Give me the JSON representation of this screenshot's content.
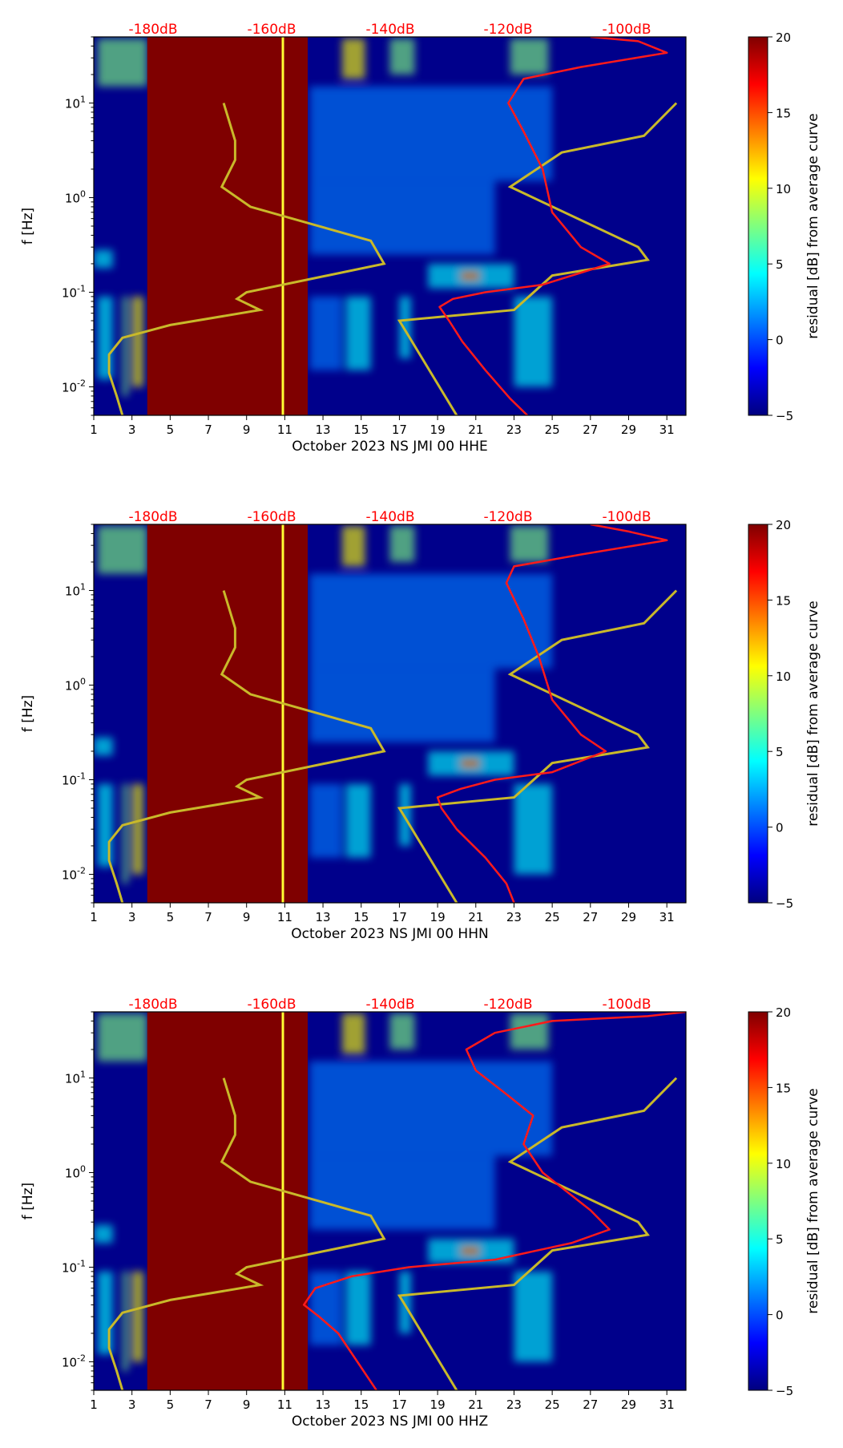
{
  "colors": {
    "jet": [
      "#00007f",
      "#0000ff",
      "#007fff",
      "#00ffff",
      "#7fff7f",
      "#ffff00",
      "#ff7f00",
      "#ff0000",
      "#7f0000"
    ],
    "background": "#00008b",
    "saturated_block": "#7f0000",
    "noise_model": "#c9b92a",
    "percentile_curve": "#ff1a1a",
    "top_label": "#ff0000"
  },
  "chart_data": [
    {
      "type": "heatmap",
      "xlabel": "October 2023 NS JMI 00 HHE",
      "ylabel": "f [Hz]",
      "colorbar_label": "residual [dB] from average curve",
      "xlim": [
        1,
        32
      ],
      "ylim": [
        0.005,
        50
      ],
      "yscale": "log",
      "x_ticks": [
        "1",
        "3",
        "5",
        "7",
        "9",
        "11",
        "13",
        "15",
        "17",
        "19",
        "21",
        "23",
        "25",
        "27",
        "29",
        "31"
      ],
      "y_ticks": [
        "10^-2",
        "10^-1",
        "10^0",
        "10^1"
      ],
      "colorbar_ticks": [
        "20",
        "15",
        "10",
        "5",
        "0",
        "−5"
      ],
      "colorbar_range": [
        -5,
        20
      ],
      "top_db_labels": [
        "-180dB",
        "-160dB",
        "-140dB",
        "-120dB",
        "-100dB"
      ],
      "saturated_span_days": [
        3.8,
        12.2
      ],
      "red_curve": [
        [
          23.7,
          0.005
        ],
        [
          22.8,
          0.0075
        ],
        [
          21.5,
          0.015
        ],
        [
          20.3,
          0.03
        ],
        [
          19.6,
          0.05
        ],
        [
          19.1,
          0.07
        ],
        [
          19.8,
          0.085
        ],
        [
          21.5,
          0.1
        ],
        [
          24.5,
          0.12
        ],
        [
          28.0,
          0.2
        ],
        [
          26.5,
          0.3
        ],
        [
          25.0,
          0.7
        ],
        [
          24.5,
          2.0
        ],
        [
          23.5,
          5.0
        ],
        [
          22.7,
          10.0
        ],
        [
          23.5,
          18.0
        ],
        [
          26.5,
          24.0
        ],
        [
          31.0,
          34.0
        ],
        [
          29.5,
          45.0
        ],
        [
          27.0,
          50.0
        ]
      ],
      "yellow_curve": [
        [
          20.0,
          0.005
        ],
        [
          17.0,
          0.05
        ],
        [
          23.0,
          0.065
        ],
        [
          25.0,
          0.15
        ],
        [
          30.0,
          0.22
        ],
        [
          29.5,
          0.3
        ],
        [
          22.8,
          1.3
        ],
        [
          25.5,
          3.0
        ],
        [
          29.8,
          4.5
        ],
        [
          31.5,
          10.0
        ]
      ],
      "yellow_curve_low": [
        [
          2.5,
          0.005
        ],
        [
          2.2,
          0.008
        ],
        [
          1.8,
          0.014
        ],
        [
          1.8,
          0.022
        ],
        [
          2.5,
          0.033
        ],
        [
          5.0,
          0.045
        ],
        [
          9.7,
          0.065
        ],
        [
          8.5,
          0.085
        ],
        [
          9.0,
          0.1
        ],
        [
          16.2,
          0.2
        ],
        [
          15.5,
          0.35
        ],
        [
          9.2,
          0.8
        ],
        [
          7.7,
          1.3
        ],
        [
          8.4,
          2.5
        ],
        [
          8.4,
          4.0
        ],
        [
          7.8,
          10.0
        ]
      ]
    },
    {
      "type": "heatmap",
      "xlabel": "October 2023 NS JMI 00 HHN",
      "ylabel": "f [Hz]",
      "colorbar_label": "residual [dB] from average curve",
      "xlim": [
        1,
        32
      ],
      "ylim": [
        0.005,
        50
      ],
      "yscale": "log",
      "x_ticks": [
        "1",
        "3",
        "5",
        "7",
        "9",
        "11",
        "13",
        "15",
        "17",
        "19",
        "21",
        "23",
        "25",
        "27",
        "29",
        "31"
      ],
      "y_ticks": [
        "10^-2",
        "10^-1",
        "10^0",
        "10^1"
      ],
      "colorbar_ticks": [
        "20",
        "15",
        "10",
        "5",
        "0",
        "−5"
      ],
      "colorbar_range": [
        -5,
        20
      ],
      "top_db_labels": [
        "-180dB",
        "-160dB",
        "-140dB",
        "-120dB",
        "-100dB"
      ],
      "saturated_span_days": [
        3.8,
        12.2
      ],
      "red_curve": [
        [
          23.0,
          0.005
        ],
        [
          22.6,
          0.008
        ],
        [
          21.5,
          0.015
        ],
        [
          20.0,
          0.03
        ],
        [
          19.2,
          0.05
        ],
        [
          19.0,
          0.065
        ],
        [
          20.2,
          0.08
        ],
        [
          22.0,
          0.1
        ],
        [
          25.0,
          0.12
        ],
        [
          27.8,
          0.2
        ],
        [
          26.5,
          0.3
        ],
        [
          25.0,
          0.7
        ],
        [
          24.3,
          2.0
        ],
        [
          23.5,
          5.0
        ],
        [
          22.6,
          12.0
        ],
        [
          23.0,
          18.0
        ],
        [
          26.5,
          24.0
        ],
        [
          31.0,
          34.0
        ],
        [
          29.0,
          42.0
        ],
        [
          27.0,
          50.0
        ]
      ],
      "yellow_curve": [
        [
          20.0,
          0.005
        ],
        [
          17.0,
          0.05
        ],
        [
          23.0,
          0.065
        ],
        [
          25.0,
          0.15
        ],
        [
          30.0,
          0.22
        ],
        [
          29.5,
          0.3
        ],
        [
          22.8,
          1.3
        ],
        [
          25.5,
          3.0
        ],
        [
          29.8,
          4.5
        ],
        [
          31.5,
          10.0
        ]
      ],
      "yellow_curve_low": [
        [
          2.5,
          0.005
        ],
        [
          2.2,
          0.008
        ],
        [
          1.8,
          0.014
        ],
        [
          1.8,
          0.022
        ],
        [
          2.5,
          0.033
        ],
        [
          5.0,
          0.045
        ],
        [
          9.7,
          0.065
        ],
        [
          8.5,
          0.085
        ],
        [
          9.0,
          0.1
        ],
        [
          16.2,
          0.2
        ],
        [
          15.5,
          0.35
        ],
        [
          9.2,
          0.8
        ],
        [
          7.7,
          1.3
        ],
        [
          8.4,
          2.5
        ],
        [
          8.4,
          4.0
        ],
        [
          7.8,
          10.0
        ]
      ]
    },
    {
      "type": "heatmap",
      "xlabel": "October 2023 NS JMI 00 HHZ",
      "ylabel": "f [Hz]",
      "colorbar_label": "residual [dB] from average curve",
      "xlim": [
        1,
        32
      ],
      "ylim": [
        0.005,
        50
      ],
      "yscale": "log",
      "x_ticks": [
        "1",
        "3",
        "5",
        "7",
        "9",
        "11",
        "13",
        "15",
        "17",
        "19",
        "21",
        "23",
        "25",
        "27",
        "29",
        "31"
      ],
      "y_ticks": [
        "10^-2",
        "10^-1",
        "10^0",
        "10^1"
      ],
      "colorbar_ticks": [
        "20",
        "15",
        "10",
        "5",
        "0",
        "−5"
      ],
      "colorbar_range": [
        -5,
        20
      ],
      "top_db_labels": [
        "-180dB",
        "-160dB",
        "-140dB",
        "-120dB",
        "-100dB"
      ],
      "saturated_span_days": [
        3.8,
        12.2
      ],
      "red_curve": [
        [
          15.8,
          0.005
        ],
        [
          14.8,
          0.01
        ],
        [
          13.8,
          0.02
        ],
        [
          12.8,
          0.03
        ],
        [
          12.0,
          0.04
        ],
        [
          12.6,
          0.06
        ],
        [
          14.5,
          0.08
        ],
        [
          17.5,
          0.1
        ],
        [
          22.0,
          0.12
        ],
        [
          26.0,
          0.18
        ],
        [
          28.0,
          0.25
        ],
        [
          27.0,
          0.4
        ],
        [
          24.5,
          1.0
        ],
        [
          23.5,
          2.0
        ],
        [
          24.0,
          4.0
        ],
        [
          22.5,
          7.0
        ],
        [
          21.0,
          12.0
        ],
        [
          20.5,
          20.0
        ],
        [
          22.0,
          30.0
        ],
        [
          25.0,
          40.0
        ],
        [
          30.0,
          45.0
        ],
        [
          32.0,
          50.0
        ]
      ],
      "yellow_curve": [
        [
          20.0,
          0.005
        ],
        [
          17.0,
          0.05
        ],
        [
          23.0,
          0.065
        ],
        [
          25.0,
          0.15
        ],
        [
          30.0,
          0.22
        ],
        [
          29.5,
          0.3
        ],
        [
          22.8,
          1.3
        ],
        [
          25.5,
          3.0
        ],
        [
          29.8,
          4.5
        ],
        [
          31.5,
          10.0
        ]
      ],
      "yellow_curve_low": [
        [
          2.5,
          0.005
        ],
        [
          2.2,
          0.008
        ],
        [
          1.8,
          0.014
        ],
        [
          1.8,
          0.022
        ],
        [
          2.5,
          0.033
        ],
        [
          5.0,
          0.045
        ],
        [
          9.7,
          0.065
        ],
        [
          8.5,
          0.085
        ],
        [
          9.0,
          0.1
        ],
        [
          16.2,
          0.2
        ],
        [
          15.5,
          0.35
        ],
        [
          9.2,
          0.8
        ],
        [
          7.7,
          1.3
        ],
        [
          8.4,
          2.5
        ],
        [
          8.4,
          4.0
        ],
        [
          7.8,
          10.0
        ]
      ]
    }
  ]
}
